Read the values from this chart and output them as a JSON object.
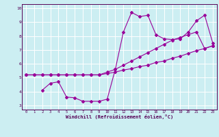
{
  "background_color": "#cceef2",
  "grid_color": "#ffffff",
  "line_color": "#990099",
  "xlabel": "Windchill (Refroidissement éolien,°C)",
  "xlim": [
    -0.5,
    23.5
  ],
  "ylim": [
    2.7,
    10.3
  ],
  "xticks": [
    0,
    1,
    2,
    3,
    4,
    5,
    6,
    7,
    8,
    9,
    10,
    11,
    12,
    13,
    14,
    15,
    16,
    17,
    18,
    19,
    20,
    21,
    22,
    23
  ],
  "yticks": [
    3,
    4,
    5,
    6,
    7,
    8,
    9,
    10
  ],
  "line1_x": [
    0,
    1,
    2,
    3,
    4,
    5,
    6,
    7,
    8,
    9,
    10,
    11,
    12,
    13,
    14,
    15,
    16,
    17,
    18,
    19,
    20,
    21,
    22,
    23
  ],
  "line1_y": [
    5.2,
    5.2,
    5.2,
    5.2,
    5.2,
    5.2,
    5.2,
    5.2,
    5.2,
    5.2,
    5.3,
    5.4,
    5.55,
    5.65,
    5.8,
    5.9,
    6.1,
    6.2,
    6.4,
    6.55,
    6.75,
    6.95,
    7.1,
    7.3
  ],
  "line2_x": [
    0,
    1,
    2,
    3,
    4,
    5,
    6,
    7,
    8,
    9,
    10,
    11,
    12,
    13,
    14,
    15,
    16,
    17,
    18,
    19,
    20,
    21,
    22,
    23
  ],
  "line2_y": [
    5.2,
    5.2,
    5.2,
    5.2,
    5.2,
    5.2,
    5.2,
    5.2,
    5.2,
    5.2,
    5.4,
    5.6,
    5.9,
    6.2,
    6.5,
    6.8,
    7.1,
    7.4,
    7.7,
    7.9,
    8.1,
    8.3,
    7.1,
    7.3
  ],
  "line3_x": [
    2,
    3,
    4,
    5,
    6,
    7,
    8,
    9,
    10,
    11,
    12,
    13,
    14,
    15,
    16,
    17,
    18,
    19,
    20,
    21,
    22,
    23
  ],
  "line3_y": [
    4.1,
    4.6,
    4.7,
    3.6,
    3.55,
    3.3,
    3.3,
    3.3,
    3.45,
    5.6,
    8.3,
    9.7,
    9.4,
    9.5,
    8.1,
    7.8,
    7.75,
    7.8,
    8.3,
    9.1,
    9.5,
    7.5
  ]
}
